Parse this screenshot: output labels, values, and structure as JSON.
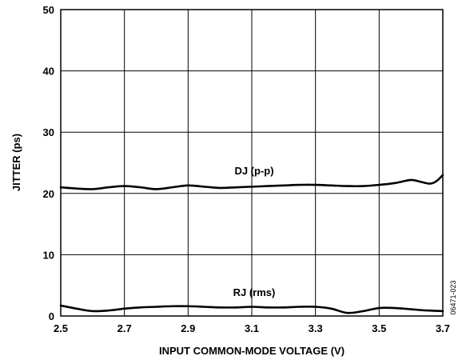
{
  "chart_data": {
    "type": "line",
    "xlabel": "INPUT COMMON-MODE VOLTAGE (V)",
    "ylabel": "JITTER (ps)",
    "xlim": [
      2.5,
      3.7
    ],
    "ylim": [
      0,
      50
    ],
    "x_ticks": [
      "2.5",
      "2.7",
      "2.9",
      "3.1",
      "3.3",
      "3.5",
      "3.7"
    ],
    "y_ticks": [
      "0",
      "10",
      "20",
      "30",
      "40",
      "50"
    ],
    "grid": true,
    "series": [
      {
        "name": "DJ (p-p)",
        "x": [
          2.5,
          2.55,
          2.6,
          2.65,
          2.7,
          2.75,
          2.8,
          2.85,
          2.9,
          2.95,
          3.0,
          3.05,
          3.1,
          3.15,
          3.2,
          3.25,
          3.3,
          3.35,
          3.4,
          3.45,
          3.5,
          3.55,
          3.6,
          3.63,
          3.66,
          3.68,
          3.7
        ],
        "y": [
          21.0,
          20.8,
          20.7,
          21.0,
          21.2,
          21.0,
          20.7,
          21.0,
          21.3,
          21.1,
          20.9,
          21.0,
          21.1,
          21.2,
          21.3,
          21.4,
          21.4,
          21.3,
          21.2,
          21.2,
          21.4,
          21.7,
          22.2,
          21.9,
          21.6,
          22.0,
          23.0
        ]
      },
      {
        "name": "RJ (rms)",
        "x": [
          2.5,
          2.55,
          2.6,
          2.65,
          2.7,
          2.75,
          2.8,
          2.85,
          2.9,
          2.95,
          3.0,
          3.05,
          3.1,
          3.15,
          3.2,
          3.25,
          3.3,
          3.35,
          3.4,
          3.45,
          3.5,
          3.55,
          3.6,
          3.65,
          3.7
        ],
        "y": [
          1.7,
          1.2,
          0.8,
          0.9,
          1.2,
          1.4,
          1.5,
          1.6,
          1.6,
          1.5,
          1.4,
          1.4,
          1.5,
          1.4,
          1.4,
          1.5,
          1.5,
          1.2,
          0.5,
          0.8,
          1.3,
          1.3,
          1.1,
          0.9,
          0.8
        ]
      }
    ],
    "annotations": [
      "DJ (p-p)",
      "RJ (rms)"
    ],
    "figure_id": "06471-023"
  }
}
